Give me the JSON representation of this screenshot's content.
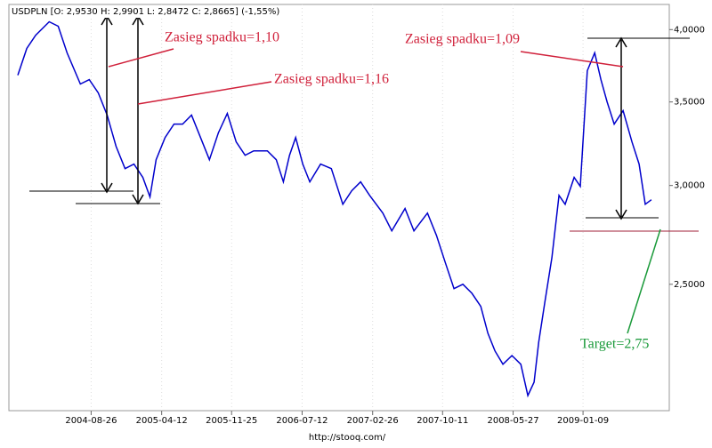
{
  "chart_data": {
    "type": "line",
    "title": "USDPLN [O: 2,9530  H: 2,9901  L: 2,8472  C: 2,8665] (-1,55%)",
    "footer": "http://stooq.com/",
    "annotations": [
      "Zasieg spadku=1,10",
      "Zasieg spadku=1,16",
      "Zasieg spadku=1,09",
      "Target=2,75"
    ],
    "color": "#0000cc",
    "x": [
      "2004-01-01",
      "2004-01-30",
      "2004-02-28",
      "2004-04-12",
      "2004-05-11",
      "2004-06-09",
      "2004-07-22",
      "2004-08-20",
      "2004-09-18",
      "2004-10-17",
      "2004-11-15",
      "2004-12-14",
      "2005-01-12",
      "2005-02-10",
      "2005-03-05",
      "2005-03-25",
      "2005-04-23",
      "2005-05-22",
      "2005-06-19",
      "2005-07-18",
      "2005-08-16",
      "2005-09-14",
      "2005-10-13",
      "2005-11-11",
      "2005-12-10",
      "2006-01-08",
      "2006-02-05",
      "2006-03-21",
      "2006-04-19",
      "2006-05-12",
      "2006-06-01",
      "2006-06-21",
      "2006-07-14",
      "2006-08-06",
      "2006-09-10",
      "2006-10-15",
      "2006-11-21",
      "2006-12-20",
      "2007-01-18",
      "2007-02-16",
      "2007-03-31",
      "2007-04-29",
      "2007-06-11",
      "2007-07-10",
      "2007-08-23",
      "2007-09-21",
      "2007-10-19",
      "2007-11-17",
      "2007-12-16",
      "2008-01-14",
      "2008-02-12",
      "2008-03-06",
      "2008-03-29",
      "2008-04-24",
      "2008-05-23",
      "2008-06-21",
      "2008-07-14",
      "2008-08-03",
      "2008-08-18",
      "2008-09-07",
      "2008-09-30",
      "2008-10-23",
      "2008-11-12",
      "2008-12-11",
      "2008-12-31",
      "2009-01-23",
      "2009-02-16",
      "2009-03-08",
      "2009-03-28",
      "2009-04-20",
      "2009-05-19",
      "2009-06-17",
      "2009-07-10",
      "2009-07-30",
      "2009-08-19"
    ],
    "values": [
      3.677,
      3.863,
      3.959,
      4.058,
      4.025,
      3.832,
      3.618,
      3.647,
      3.559,
      3.416,
      3.225,
      3.095,
      3.121,
      3.045,
      2.937,
      3.146,
      3.278,
      3.36,
      3.36,
      3.416,
      3.278,
      3.146,
      3.305,
      3.427,
      3.251,
      3.172,
      3.198,
      3.198,
      3.146,
      3.02,
      3.172,
      3.278,
      3.121,
      3.02,
      3.121,
      3.095,
      2.898,
      2.971,
      3.02,
      2.946,
      2.851,
      2.759,
      2.875,
      2.759,
      2.851,
      2.736,
      2.605,
      2.48,
      2.5,
      2.459,
      2.4,
      2.284,
      2.211,
      2.157,
      2.192,
      2.157,
      2.036,
      2.087,
      2.247,
      2.419,
      2.626,
      2.946,
      2.898,
      3.045,
      2.995,
      3.708,
      3.832,
      3.647,
      3.501,
      3.36,
      3.444,
      3.251,
      3.121,
      2.898,
      2.922
    ],
    "xlim": [
      "2003-12-03",
      "2009-10-16"
    ],
    "xticks": [
      "2004-08-26",
      "2005-04-12",
      "2005-11-25",
      "2006-07-12",
      "2007-02-26",
      "2007-10-11",
      "2008-05-27",
      "2009-01-09"
    ],
    "ylim": [
      1.98,
      4.19
    ],
    "log_scale": true,
    "yticks": [
      {
        "value": 2.5,
        "label": "2,5000"
      },
      {
        "value": 3,
        "label": "3,0000"
      },
      {
        "value": 3.5,
        "label": "3,5000"
      },
      {
        "value": 4,
        "label": "4,0000"
      }
    ]
  }
}
